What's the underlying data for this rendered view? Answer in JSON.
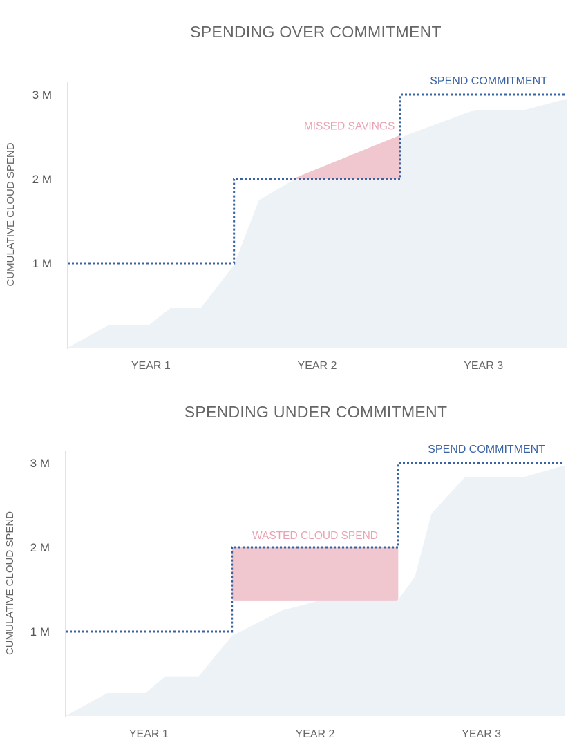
{
  "chart_data": [
    {
      "type": "area",
      "title": "SPENDING OVER COMMITMENT",
      "ylabel": "CUMULATIVE CLOUD SPEND",
      "xlabel": "",
      "ylim": [
        0,
        3.2
      ],
      "xlim": [
        0,
        3
      ],
      "y_ticks": [
        "1 M",
        "2 M",
        "3 M"
      ],
      "y_tick_values": [
        1,
        2,
        3
      ],
      "x_ticks": [
        "YEAR 1",
        "YEAR 2",
        "YEAR 3"
      ],
      "x_tick_values": [
        0.5,
        1.5,
        2.5
      ],
      "colors": {
        "spend": "#edf2f7",
        "commitment": "#3a63a3",
        "annotation": "#f0c6cf",
        "annotation_text": "#e8a3b2"
      },
      "series": [
        {
          "name": "",
          "kind": "area",
          "x": [
            0,
            0.25,
            0.49,
            0.62,
            0.8,
            1.0,
            1.15,
            1.35,
            1.7,
            2.05,
            2.45,
            2.75,
            3.0
          ],
          "y": [
            0,
            0.27,
            0.27,
            0.47,
            0.47,
            0.98,
            1.75,
            1.98,
            2.23,
            2.53,
            2.82,
            2.82,
            2.95
          ]
        },
        {
          "name": "SPEND COMMITMENT",
          "kind": "step-dotted",
          "x": [
            0,
            1,
            1,
            2,
            2,
            3
          ],
          "y": [
            1,
            1,
            2,
            2,
            3,
            3
          ]
        }
      ],
      "annotations": [
        {
          "label": "MISSED SAVINGS",
          "kind": "polygon",
          "points": [
            [
              1.35,
              2.0
            ],
            [
              2.0,
              2.0
            ],
            [
              2.0,
              2.52
            ]
          ]
        }
      ]
    },
    {
      "type": "area",
      "title": "SPENDING UNDER COMMITMENT",
      "ylabel": "CUMULATIVE CLOUD SPEND",
      "xlabel": "",
      "ylim": [
        0,
        3.2
      ],
      "xlim": [
        0,
        3
      ],
      "y_ticks": [
        "1 M",
        "2 M",
        "3 M"
      ],
      "y_tick_values": [
        1,
        2,
        3
      ],
      "x_ticks": [
        "YEAR 1",
        "YEAR 2",
        "YEAR 3"
      ],
      "x_tick_values": [
        0.5,
        1.5,
        2.5
      ],
      "colors": {
        "spend": "#edf2f7",
        "commitment": "#3a63a3",
        "annotation": "#f0c6cf",
        "annotation_text": "#e8a3b2"
      },
      "series": [
        {
          "name": "",
          "kind": "area",
          "x": [
            0,
            0.25,
            0.48,
            0.6,
            0.8,
            1.0,
            1.3,
            1.55,
            1.8,
            2.0,
            2.1,
            2.2,
            2.4,
            2.75,
            3.0
          ],
          "y": [
            0,
            0.27,
            0.27,
            0.47,
            0.47,
            0.95,
            1.25,
            1.38,
            1.38,
            1.38,
            1.65,
            2.4,
            2.83,
            2.83,
            2.97
          ]
        },
        {
          "name": "SPEND COMMITMENT",
          "kind": "step-dotted",
          "x": [
            0,
            1,
            1,
            2,
            2,
            3
          ],
          "y": [
            1,
            1,
            2,
            2,
            3,
            3
          ]
        }
      ],
      "annotations": [
        {
          "label": "WASTED CLOUD SPEND",
          "kind": "rect",
          "x": [
            1.0,
            2.0
          ],
          "y": [
            1.37,
            2.0
          ]
        }
      ]
    }
  ]
}
